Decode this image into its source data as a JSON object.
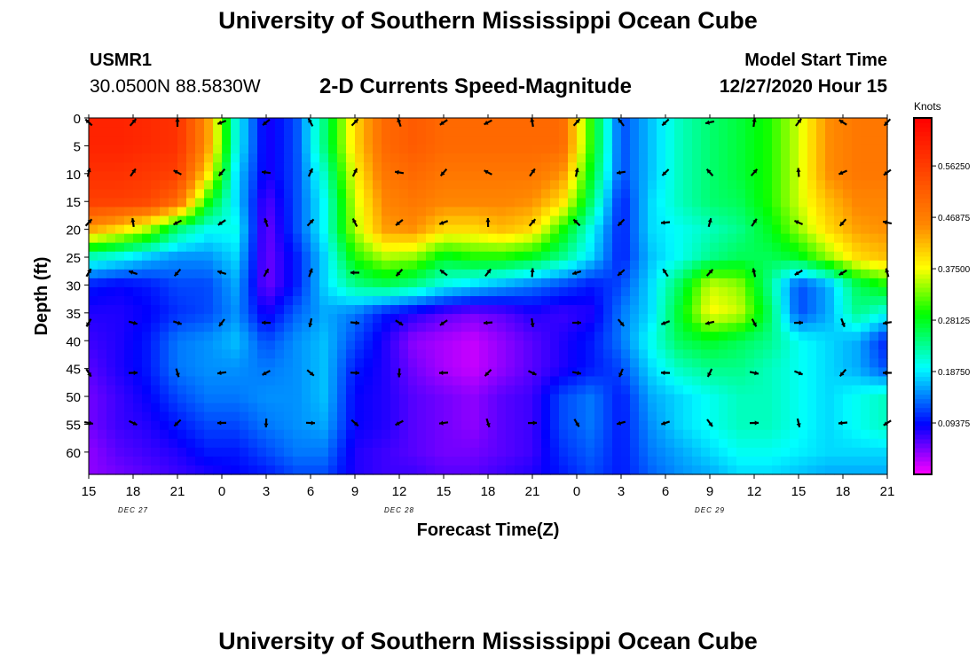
{
  "header": {
    "title": "University of Southern Mississippi Ocean Cube",
    "station": "USMR1",
    "coordinates": "30.0500N 88.5830W",
    "subtitle": "2-D Currents Speed-Magnitude",
    "start_label": "Model Start Time",
    "start_value": "12/27/2020 Hour 15"
  },
  "footer": {
    "title": "University of Southern Mississippi Ocean Cube"
  },
  "chart_data": {
    "type": "heatmap",
    "xlabel": "Forecast Time(Z)",
    "ylabel": "Depth (ft)",
    "x_ticks": [
      "15",
      "18",
      "21",
      "0",
      "3",
      "6",
      "9",
      "12",
      "15",
      "18",
      "21",
      "0",
      "3",
      "6",
      "9",
      "12",
      "15",
      "18",
      "21"
    ],
    "date_labels": [
      {
        "label": "DEC 27",
        "tick_index": 1
      },
      {
        "label": "DEC 28",
        "tick_index": 7
      },
      {
        "label": "DEC 29",
        "tick_index": 14
      }
    ],
    "y_ticks": [
      0,
      5,
      10,
      15,
      20,
      25,
      30,
      35,
      40,
      45,
      50,
      55,
      60
    ],
    "ylim": [
      0,
      64
    ],
    "colorbar": {
      "title": "Knots",
      "ticks": [
        "0.09375",
        "0.18750",
        "0.28125",
        "0.37500",
        "0.46875",
        "0.56250"
      ],
      "range": [
        0,
        0.65
      ]
    },
    "depths": [
      0,
      5,
      10,
      15,
      20,
      25,
      30,
      35,
      40,
      45,
      50,
      55,
      60,
      64
    ],
    "speed_knots": [
      [
        0.6,
        0.6,
        0.59,
        0.58,
        0.45,
        0.2,
        0.08,
        0.12,
        0.25,
        0.4,
        0.5,
        0.52,
        0.5,
        0.5,
        0.5,
        0.5,
        0.5,
        0.3,
        0.12,
        0.17,
        0.22,
        0.25,
        0.27,
        0.3,
        0.36,
        0.45,
        0.48,
        0.48
      ],
      [
        0.6,
        0.6,
        0.59,
        0.58,
        0.45,
        0.2,
        0.08,
        0.12,
        0.25,
        0.4,
        0.5,
        0.52,
        0.5,
        0.5,
        0.5,
        0.5,
        0.5,
        0.3,
        0.12,
        0.17,
        0.22,
        0.25,
        0.27,
        0.3,
        0.36,
        0.45,
        0.48,
        0.48
      ],
      [
        0.58,
        0.58,
        0.57,
        0.56,
        0.4,
        0.18,
        0.08,
        0.12,
        0.22,
        0.38,
        0.48,
        0.5,
        0.48,
        0.48,
        0.48,
        0.48,
        0.45,
        0.28,
        0.12,
        0.17,
        0.22,
        0.25,
        0.27,
        0.3,
        0.36,
        0.45,
        0.48,
        0.48
      ],
      [
        0.56,
        0.56,
        0.55,
        0.5,
        0.3,
        0.18,
        0.06,
        0.12,
        0.2,
        0.36,
        0.46,
        0.48,
        0.46,
        0.46,
        0.46,
        0.45,
        0.4,
        0.25,
        0.1,
        0.18,
        0.22,
        0.25,
        0.26,
        0.3,
        0.36,
        0.42,
        0.46,
        0.46
      ],
      [
        0.44,
        0.4,
        0.35,
        0.25,
        0.2,
        0.2,
        0.05,
        0.12,
        0.2,
        0.35,
        0.44,
        0.45,
        0.4,
        0.4,
        0.42,
        0.4,
        0.3,
        0.2,
        0.1,
        0.18,
        0.2,
        0.22,
        0.24,
        0.28,
        0.34,
        0.4,
        0.44,
        0.45
      ],
      [
        0.22,
        0.2,
        0.17,
        0.15,
        0.15,
        0.18,
        0.05,
        0.1,
        0.18,
        0.3,
        0.35,
        0.34,
        0.28,
        0.3,
        0.3,
        0.28,
        0.24,
        0.18,
        0.1,
        0.17,
        0.2,
        0.24,
        0.26,
        0.26,
        0.28,
        0.34,
        0.4,
        0.42
      ],
      [
        0.1,
        0.09,
        0.1,
        0.12,
        0.12,
        0.16,
        0.05,
        0.1,
        0.18,
        0.24,
        0.26,
        0.24,
        0.2,
        0.18,
        0.16,
        0.14,
        0.12,
        0.1,
        0.12,
        0.18,
        0.26,
        0.36,
        0.34,
        0.24,
        0.12,
        0.16,
        0.26,
        0.3
      ],
      [
        0.08,
        0.08,
        0.09,
        0.11,
        0.12,
        0.15,
        0.08,
        0.13,
        0.16,
        0.14,
        0.1,
        0.08,
        0.06,
        0.05,
        0.06,
        0.08,
        0.07,
        0.08,
        0.14,
        0.18,
        0.28,
        0.38,
        0.36,
        0.26,
        0.12,
        0.16,
        0.24,
        0.2
      ],
      [
        0.07,
        0.08,
        0.1,
        0.14,
        0.15,
        0.17,
        0.12,
        0.15,
        0.17,
        0.12,
        0.08,
        0.04,
        0.03,
        0.02,
        0.04,
        0.06,
        0.08,
        0.1,
        0.14,
        0.2,
        0.26,
        0.28,
        0.26,
        0.24,
        0.2,
        0.18,
        0.16,
        0.1
      ],
      [
        0.06,
        0.08,
        0.1,
        0.14,
        0.15,
        0.15,
        0.14,
        0.15,
        0.17,
        0.1,
        0.08,
        0.05,
        0.03,
        0.02,
        0.04,
        0.06,
        0.08,
        0.1,
        0.12,
        0.18,
        0.22,
        0.24,
        0.24,
        0.22,
        0.2,
        0.18,
        0.16,
        0.12
      ],
      [
        0.05,
        0.07,
        0.09,
        0.12,
        0.14,
        0.14,
        0.15,
        0.15,
        0.17,
        0.09,
        0.08,
        0.06,
        0.05,
        0.04,
        0.06,
        0.07,
        0.12,
        0.14,
        0.1,
        0.16,
        0.18,
        0.2,
        0.22,
        0.22,
        0.2,
        0.18,
        0.2,
        0.22
      ],
      [
        0.05,
        0.07,
        0.08,
        0.1,
        0.12,
        0.12,
        0.14,
        0.15,
        0.16,
        0.09,
        0.08,
        0.06,
        0.05,
        0.04,
        0.06,
        0.07,
        0.12,
        0.14,
        0.1,
        0.15,
        0.18,
        0.2,
        0.22,
        0.22,
        0.2,
        0.18,
        0.2,
        0.22
      ],
      [
        0.04,
        0.06,
        0.07,
        0.08,
        0.1,
        0.1,
        0.12,
        0.14,
        0.14,
        0.08,
        0.07,
        0.06,
        0.05,
        0.05,
        0.06,
        0.07,
        0.11,
        0.13,
        0.1,
        0.14,
        0.16,
        0.18,
        0.2,
        0.2,
        0.19,
        0.18,
        0.18,
        0.18
      ],
      [
        0.04,
        0.05,
        0.06,
        0.07,
        0.08,
        0.09,
        0.1,
        0.12,
        0.12,
        0.08,
        0.07,
        0.07,
        0.06,
        0.06,
        0.07,
        0.08,
        0.1,
        0.12,
        0.1,
        0.13,
        0.15,
        0.16,
        0.18,
        0.18,
        0.17,
        0.16,
        0.16,
        0.16
      ]
    ]
  }
}
